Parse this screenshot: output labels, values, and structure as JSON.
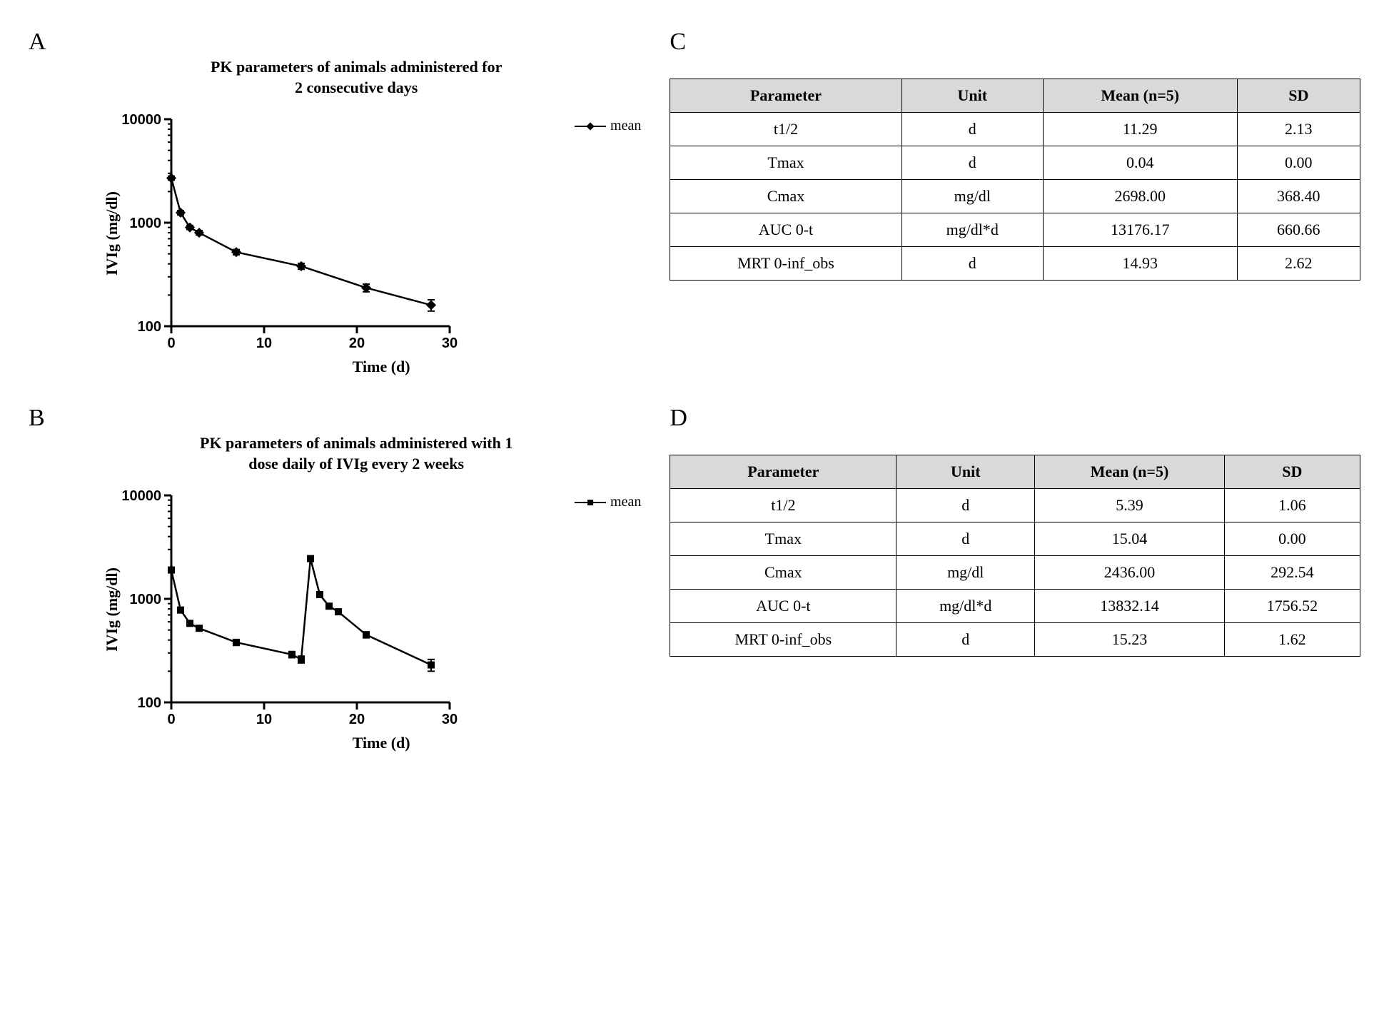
{
  "panelA": {
    "label": "A",
    "title_l1": "PK parameters of animals administered for",
    "title_l2": "2 consecutive days",
    "x_label": "Time (d)",
    "y_label": "IVIg (mg/dl)",
    "legend_label": "mean",
    "chart": {
      "type": "line-log",
      "marker": "diamond",
      "xlim": [
        0,
        30
      ],
      "xticks": [
        0,
        10,
        20,
        30
      ],
      "ylim_log10": [
        2,
        4
      ],
      "yticks": [
        100,
        1000,
        10000
      ],
      "line_color": "#000000",
      "marker_fill": "#000000",
      "axis_color": "#000000",
      "tick_fontsize": 20,
      "points": [
        {
          "x": 0,
          "y": 2700,
          "err": 120
        },
        {
          "x": 1,
          "y": 1250,
          "err": 60
        },
        {
          "x": 2,
          "y": 900,
          "err": 40
        },
        {
          "x": 3,
          "y": 800,
          "err": 40
        },
        {
          "x": 7,
          "y": 520,
          "err": 30
        },
        {
          "x": 14,
          "y": 380,
          "err": 25
        },
        {
          "x": 21,
          "y": 235,
          "err": 20
        },
        {
          "x": 28,
          "y": 160,
          "err": 20
        }
      ]
    }
  },
  "panelB": {
    "label": "B",
    "title_l1": "PK parameters of animals administered with 1",
    "title_l2": "dose daily of IVIg every 2 weeks",
    "x_label": "Time (d)",
    "y_label": "IVIg (mg/dl)",
    "legend_label": "mean",
    "chart": {
      "type": "line-log",
      "marker": "square",
      "xlim": [
        0,
        30
      ],
      "xticks": [
        0,
        10,
        20,
        30
      ],
      "ylim_log10": [
        2,
        4
      ],
      "yticks": [
        100,
        1000,
        10000
      ],
      "line_color": "#000000",
      "marker_fill": "#000000",
      "axis_color": "#000000",
      "tick_fontsize": 20,
      "points": [
        {
          "x": 0,
          "y": 1900,
          "err": 100
        },
        {
          "x": 1,
          "y": 780,
          "err": 40
        },
        {
          "x": 2,
          "y": 580,
          "err": 30
        },
        {
          "x": 3,
          "y": 520,
          "err": 30
        },
        {
          "x": 7,
          "y": 380,
          "err": 25
        },
        {
          "x": 13,
          "y": 290,
          "err": 20
        },
        {
          "x": 14,
          "y": 260,
          "err": 20
        },
        {
          "x": 15,
          "y": 2450,
          "err": 120
        },
        {
          "x": 16,
          "y": 1100,
          "err": 60
        },
        {
          "x": 17,
          "y": 850,
          "err": 40
        },
        {
          "x": 18,
          "y": 750,
          "err": 40
        },
        {
          "x": 21,
          "y": 450,
          "err": 30
        },
        {
          "x": 28,
          "y": 230,
          "err": 30
        }
      ]
    }
  },
  "panelC": {
    "label": "C",
    "table": {
      "columns": [
        "Parameter",
        "Unit",
        "Mean (n=5)",
        "SD"
      ],
      "rows": [
        [
          "t1/2",
          "d",
          "11.29",
          "2.13"
        ],
        [
          "Tmax",
          "d",
          "0.04",
          "0.00"
        ],
        [
          "Cmax",
          "mg/dl",
          "2698.00",
          "368.40"
        ],
        [
          "AUC 0-t",
          "mg/dl*d",
          "13176.17",
          "660.66"
        ],
        [
          "MRT 0-inf_obs",
          "d",
          "14.93",
          "2.62"
        ]
      ],
      "header_bg": "#d9d9d9",
      "border_color": "#000000",
      "fontsize": 22
    }
  },
  "panelD": {
    "label": "D",
    "table": {
      "columns": [
        "Parameter",
        "Unit",
        "Mean (n=5)",
        "SD"
      ],
      "rows": [
        [
          "t1/2",
          "d",
          "5.39",
          "1.06"
        ],
        [
          "Tmax",
          "d",
          "15.04",
          "0.00"
        ],
        [
          "Cmax",
          "mg/dl",
          "2436.00",
          "292.54"
        ],
        [
          "AUC 0-t",
          "mg/dl*d",
          "13832.14",
          "1756.52"
        ],
        [
          "MRT 0-inf_obs",
          "d",
          "15.23",
          "1.62"
        ]
      ],
      "header_bg": "#d9d9d9",
      "border_color": "#000000",
      "fontsize": 22
    }
  }
}
